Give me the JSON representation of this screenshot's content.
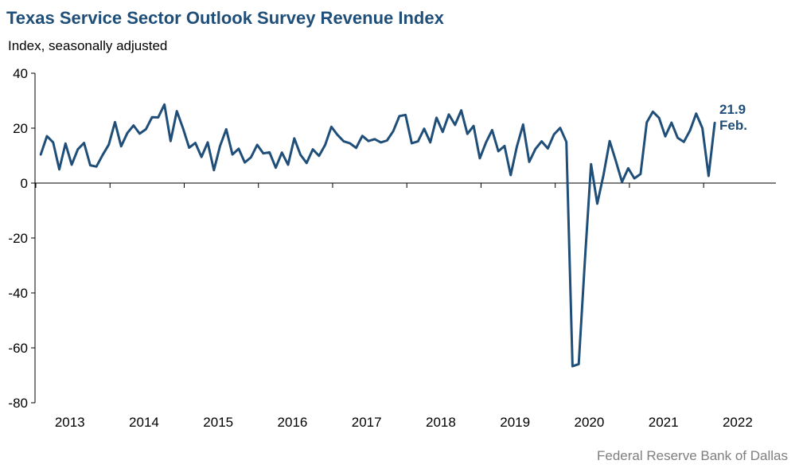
{
  "title": "Texas Service Sector Outlook Survey Revenue Index",
  "subtitle": "Index, seasonally adjusted",
  "source": "Federal Reserve Bank of Dallas",
  "chart_data": {
    "type": "line",
    "title": "Texas Service Sector Outlook Survey Revenue Index",
    "ylabel": "Index, seasonally adjusted",
    "xlabel": "",
    "ylim": [
      -80,
      40
    ],
    "yticks": [
      40,
      20,
      0,
      -20,
      -40,
      -60,
      -80
    ],
    "xtick_labels": [
      "2013",
      "2014",
      "2015",
      "2016",
      "2017",
      "2018",
      "2019",
      "2020",
      "2021",
      "2022"
    ],
    "x_start": "2013-01",
    "x_end": "2022-02",
    "grid": false,
    "legend": "none",
    "line_color": "#1f4e79",
    "series": [
      {
        "values": [
          10.4,
          17.1,
          14.8,
          5.0,
          14.4,
          6.7,
          12.3,
          14.6,
          6.5,
          6.0,
          10.2,
          14.0,
          22.2,
          13.4,
          18.2,
          21.0,
          18.0,
          19.6,
          24.0,
          23.9,
          28.6,
          15.3,
          26.2,
          20.0,
          12.9,
          14.6,
          9.5,
          14.8,
          4.7,
          13.5,
          19.6,
          10.4,
          12.5,
          7.5,
          9.4,
          13.9,
          10.8,
          11.2,
          5.6,
          11.1,
          6.7,
          16.3,
          10.3,
          7.3,
          12.3,
          9.9,
          13.9,
          20.5,
          17.5,
          15.2,
          14.5,
          12.8,
          17.2,
          15.3,
          16.0,
          14.8,
          15.5,
          18.9,
          24.4,
          24.8,
          14.5,
          15.2,
          19.8,
          14.8,
          23.8,
          18.6,
          25.0,
          21.2,
          26.5,
          17.9,
          20.8,
          9.0,
          14.8,
          19.3,
          11.6,
          13.5,
          2.9,
          13.3,
          21.3,
          7.7,
          12.4,
          15.2,
          12.6,
          17.7,
          20.1,
          15.0,
          -66.7,
          -65.9,
          -28.0,
          6.9,
          -7.5,
          2.9,
          15.3,
          8.1,
          0.4,
          5.4,
          1.7,
          3.3,
          22.1,
          26.0,
          23.7,
          17.0,
          22.0,
          16.5,
          15.0,
          19.2,
          25.3,
          20.0,
          2.6,
          21.9
        ]
      }
    ],
    "annotation": {
      "value": "21.9",
      "label": "Feb."
    }
  }
}
